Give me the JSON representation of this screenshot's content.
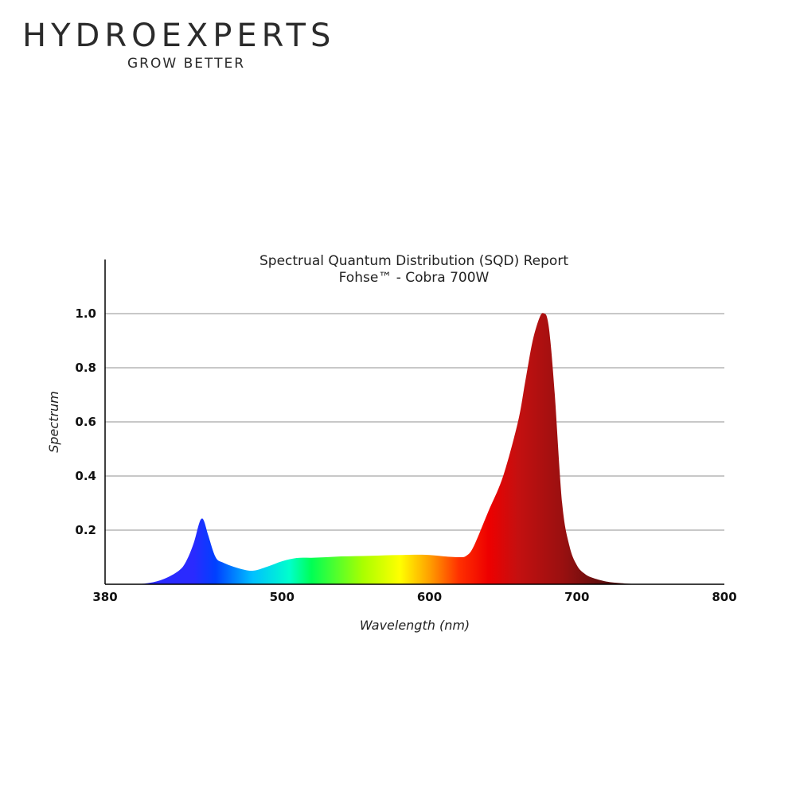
{
  "brand": {
    "name": "HYDROEXPERTS",
    "tagline": "GROW BETTER"
  },
  "chart_data": {
    "type": "area",
    "title": "Spectrual Quantum Distribution (SQD) Report",
    "subtitle": "Fohse™ - Cobra 700W",
    "xlabel": "Wavelength (nm)",
    "ylabel": "Spectrum",
    "xlim": [
      380,
      800
    ],
    "ylim": [
      0,
      1.2
    ],
    "x_ticks": [
      "380",
      "500",
      "600",
      "700",
      "800"
    ],
    "y_ticks": [
      "0.2",
      "0.4",
      "0.6",
      "0.8",
      "1.0"
    ],
    "grid": true,
    "series": [
      {
        "x": [
          380,
          400,
          410,
          420,
          430,
          435,
          440,
          443,
          445,
          447,
          450,
          455,
          460,
          470,
          480,
          490,
          500,
          510,
          520,
          530,
          540,
          550,
          560,
          570,
          580,
          590,
          600,
          610,
          620,
          625,
          630,
          640,
          650,
          660,
          665,
          670,
          675,
          678,
          680,
          682,
          685,
          690,
          695,
          700,
          705,
          710,
          720,
          730,
          740,
          760,
          780,
          800
        ],
        "y": [
          0,
          0.0,
          0.005,
          0.02,
          0.05,
          0.085,
          0.15,
          0.21,
          0.24,
          0.235,
          0.18,
          0.1,
          0.08,
          0.06,
          0.05,
          0.065,
          0.085,
          0.097,
          0.098,
          0.1,
          0.103,
          0.104,
          0.105,
          0.107,
          0.108,
          0.109,
          0.108,
          0.103,
          0.1,
          0.105,
          0.14,
          0.27,
          0.4,
          0.6,
          0.75,
          0.9,
          0.99,
          1.0,
          0.98,
          0.9,
          0.7,
          0.3,
          0.14,
          0.07,
          0.04,
          0.025,
          0.01,
          0.004,
          0.001,
          0,
          0,
          0
        ]
      }
    ],
    "gradient_stops": [
      {
        "nm": 440,
        "color": "#2a2aff"
      },
      {
        "nm": 455,
        "color": "#0040ff"
      },
      {
        "nm": 480,
        "color": "#00c0ff"
      },
      {
        "nm": 505,
        "color": "#00ffcc"
      },
      {
        "nm": 520,
        "color": "#00ff55"
      },
      {
        "nm": 555,
        "color": "#aaff00"
      },
      {
        "nm": 580,
        "color": "#ffff00"
      },
      {
        "nm": 600,
        "color": "#ffa000"
      },
      {
        "nm": 620,
        "color": "#ff3000"
      },
      {
        "nm": 640,
        "color": "#ee0000"
      },
      {
        "nm": 660,
        "color": "#c41010"
      },
      {
        "nm": 690,
        "color": "#9a1010"
      },
      {
        "nm": 720,
        "color": "#5a0e0e"
      }
    ]
  }
}
